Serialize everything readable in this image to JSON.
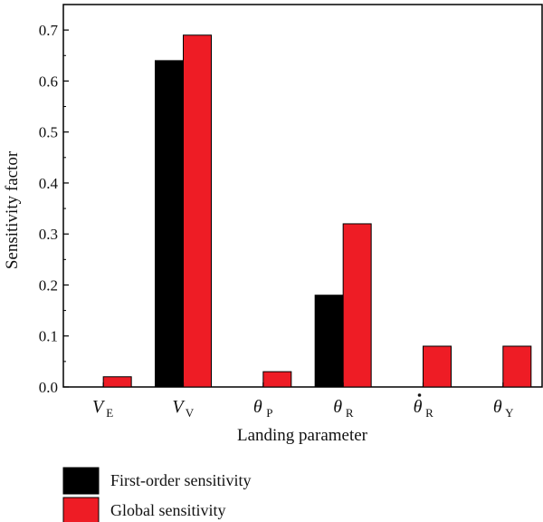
{
  "chart_data": {
    "type": "bar",
    "categories": [
      {
        "main": "V",
        "sub": "E",
        "dot": false
      },
      {
        "main": "V",
        "sub": "V",
        "dot": false
      },
      {
        "main": "θ",
        "sub": "P",
        "dot": false
      },
      {
        "main": "θ",
        "sub": "R",
        "dot": false
      },
      {
        "main": "θ",
        "sub": "R",
        "dot": true
      },
      {
        "main": "θ",
        "sub": "Y",
        "dot": false
      }
    ],
    "series": [
      {
        "name": "First-order sensitivity",
        "color": "#000000",
        "values": [
          0,
          0.64,
          0,
          0.18,
          0,
          0
        ]
      },
      {
        "name": "Global sensitivity",
        "color": "#ee1c25",
        "values": [
          0.02,
          0.69,
          0.03,
          0.32,
          0.08,
          0.08
        ]
      }
    ],
    "xlabel": "Landing parameter",
    "ylabel": "Sensitivity factor",
    "ylim": [
      0,
      0.75
    ],
    "yticks": [
      "0.0",
      "0.1",
      "0.2",
      "0.3",
      "0.4",
      "0.5",
      "0.6",
      "0.7"
    ],
    "legend": "bottom-left",
    "grid": false
  }
}
